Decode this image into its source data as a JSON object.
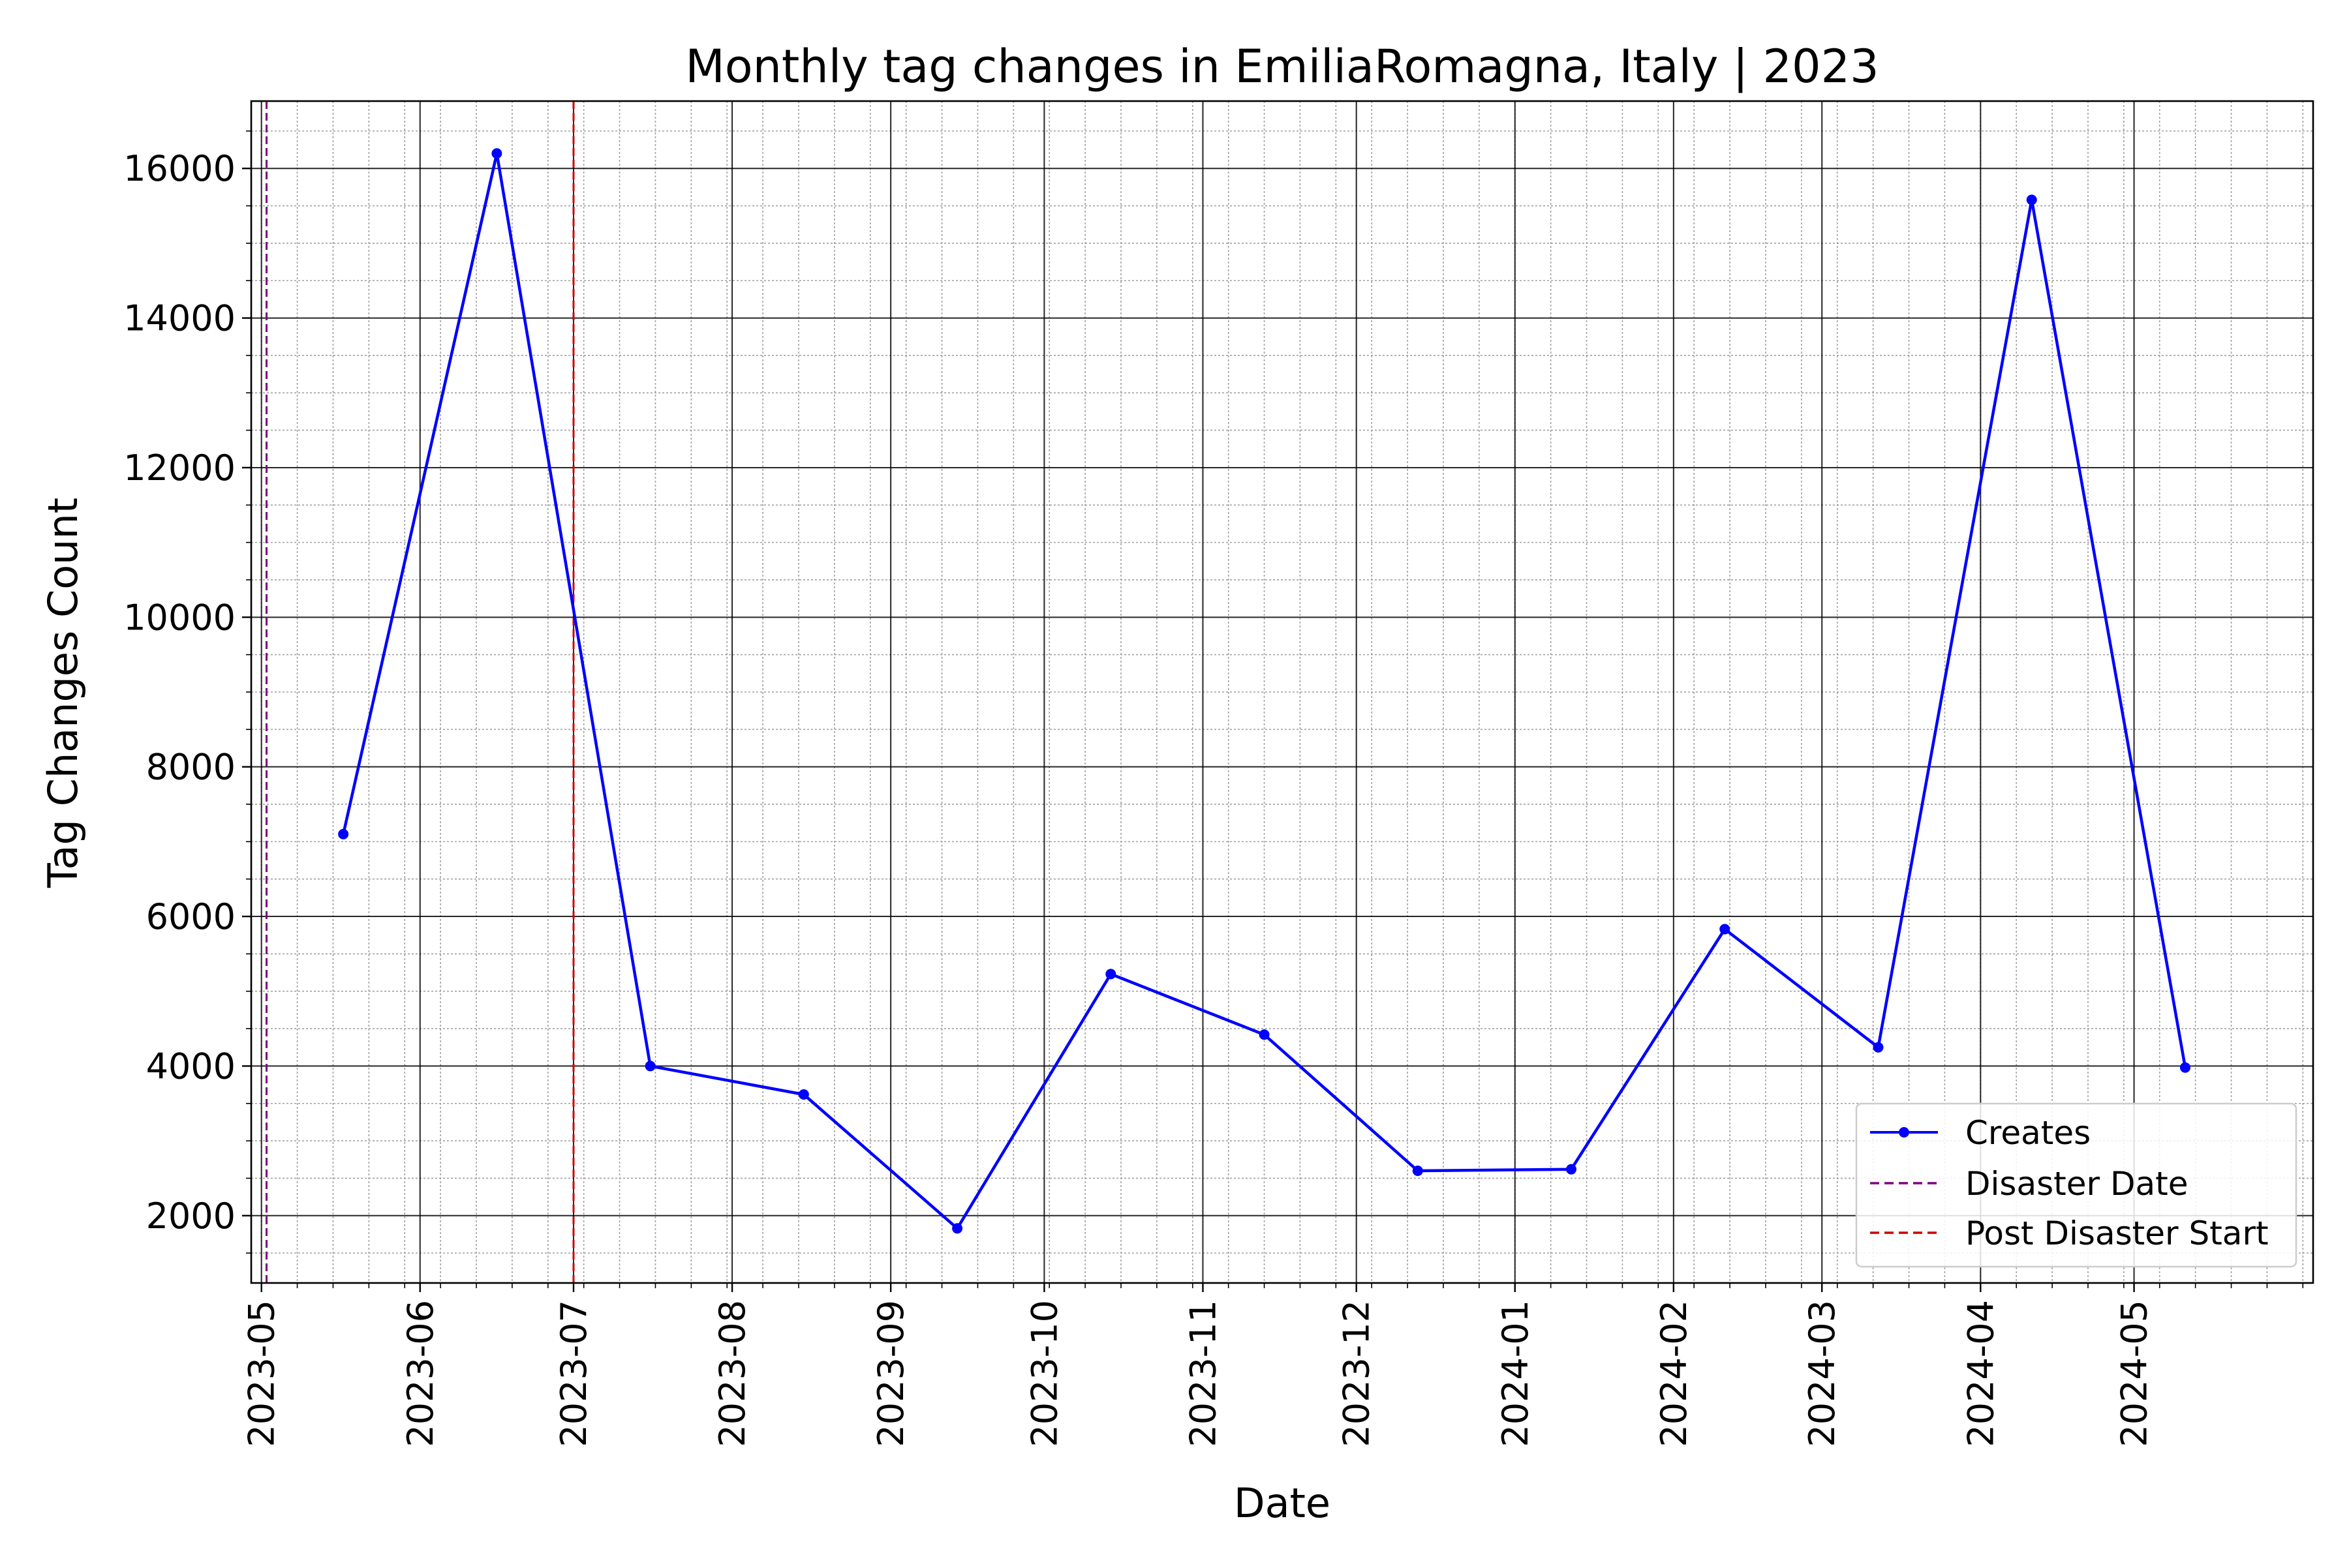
{
  "chart_data": {
    "type": "line",
    "title": "Monthly tag changes in EmiliaRomagna, Italy | 2023",
    "xlabel": "Date",
    "ylabel": "Tag Changes Count",
    "x_type": "date",
    "xlim": [
      "2023-04-29",
      "2024-06-05"
    ],
    "ylim": [
      1100,
      16900
    ],
    "grid": true,
    "minor_grid": true,
    "legend_position": "lower-right",
    "x_tick_labels": [
      "2023-05",
      "2023-06",
      "2023-07",
      "2023-08",
      "2023-09",
      "2023-10",
      "2023-11",
      "2023-12",
      "2024-01",
      "2024-02",
      "2024-03",
      "2024-04",
      "2024-05"
    ],
    "x_tick_dates": [
      "2023-05-01",
      "2023-06-01",
      "2023-07-01",
      "2023-08-01",
      "2023-09-01",
      "2023-10-01",
      "2023-11-01",
      "2023-12-01",
      "2024-01-01",
      "2024-02-01",
      "2024-03-01",
      "2024-04-01",
      "2024-05-01"
    ],
    "y_ticks": [
      2000,
      4000,
      6000,
      8000,
      10000,
      12000,
      14000,
      16000
    ],
    "y_tick_labels": [
      "2000",
      "4000",
      "6000",
      "8000",
      "10000",
      "12000",
      "14000",
      "16000"
    ],
    "series": [
      {
        "name": "Creates",
        "color": "#0000ff",
        "marker": "circle",
        "x": [
          "2023-05-17",
          "2023-06-16",
          "2023-07-16",
          "2023-08-15",
          "2023-09-14",
          "2023-10-14",
          "2023-11-13",
          "2023-12-13",
          "2024-01-12",
          "2024-02-11",
          "2024-03-12",
          "2024-04-11",
          "2024-05-11"
        ],
        "y": [
          7100,
          16200,
          4000,
          3620,
          1830,
          5230,
          4420,
          2600,
          2620,
          5830,
          4250,
          15580,
          3980
        ]
      }
    ],
    "vlines": [
      {
        "name": "Disaster Date",
        "x": "2023-05-02",
        "color": "#800080",
        "style": "dashed"
      },
      {
        "name": "Post Disaster Start",
        "x": "2023-07-01",
        "color": "#cc0000",
        "style": "dashed"
      }
    ]
  }
}
